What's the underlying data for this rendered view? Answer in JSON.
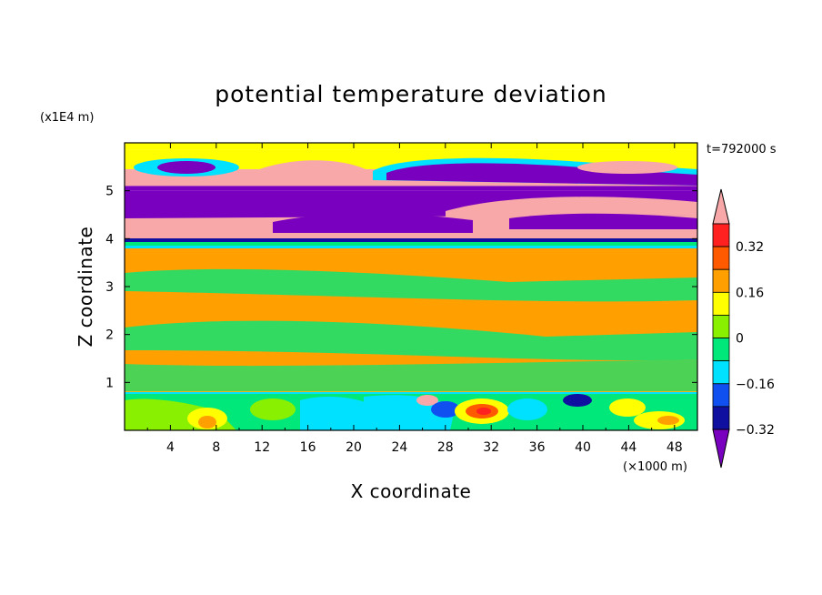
{
  "chart_data": {
    "type": "heatmap",
    "title": "potential temperature deviation",
    "time_label": "t=792000 s",
    "xlabel": "X coordinate",
    "ylabel": "Z coordinate",
    "x_unit": "(×1000 m)",
    "y_unit": "(x1E4 m)",
    "xlim": [
      0,
      50
    ],
    "ylim": [
      0,
      6
    ],
    "x_ticks": [
      "4",
      "8",
      "12",
      "16",
      "20",
      "24",
      "28",
      "32",
      "36",
      "40",
      "44",
      "48"
    ],
    "y_ticks": [
      "1",
      "2",
      "3",
      "4",
      "5"
    ],
    "colorbar": {
      "levels": [
        -0.4,
        -0.32,
        -0.24,
        -0.16,
        -0.08,
        0,
        0.08,
        0.16,
        0.24,
        0.32,
        0.4
      ],
      "tick_labels": [
        "0.32",
        "0.16",
        "0",
        "−0.16",
        "−0.32"
      ],
      "colors": [
        "#7a00c0",
        "#1010a0",
        "#1050f0",
        "#00e0ff",
        "#00e87a",
        "#88f000",
        "#ffff00",
        "#ffa000",
        "#ff5a00",
        "#ff2020",
        "#f8a8a8"
      ],
      "extend": "both"
    },
    "bands": [
      {
        "z": [
          5.85,
          6.0
        ],
        "level": 0
      },
      {
        "z": [
          5.45,
          5.85
        ],
        "level": 0
      },
      {
        "z": [
          5.1,
          5.45
        ],
        "level": 0.4
      },
      {
        "z": [
          5.0,
          5.1
        ],
        "level": -0.4
      },
      {
        "z": [
          4.3,
          5.0
        ],
        "level": -0.4
      },
      {
        "z": [
          3.9,
          4.3
        ],
        "level": 0.4
      },
      {
        "z": [
          0.8,
          3.9
        ],
        "level": 0.08
      },
      {
        "z": [
          0.0,
          0.8
        ],
        "level": -0.08
      }
    ]
  }
}
